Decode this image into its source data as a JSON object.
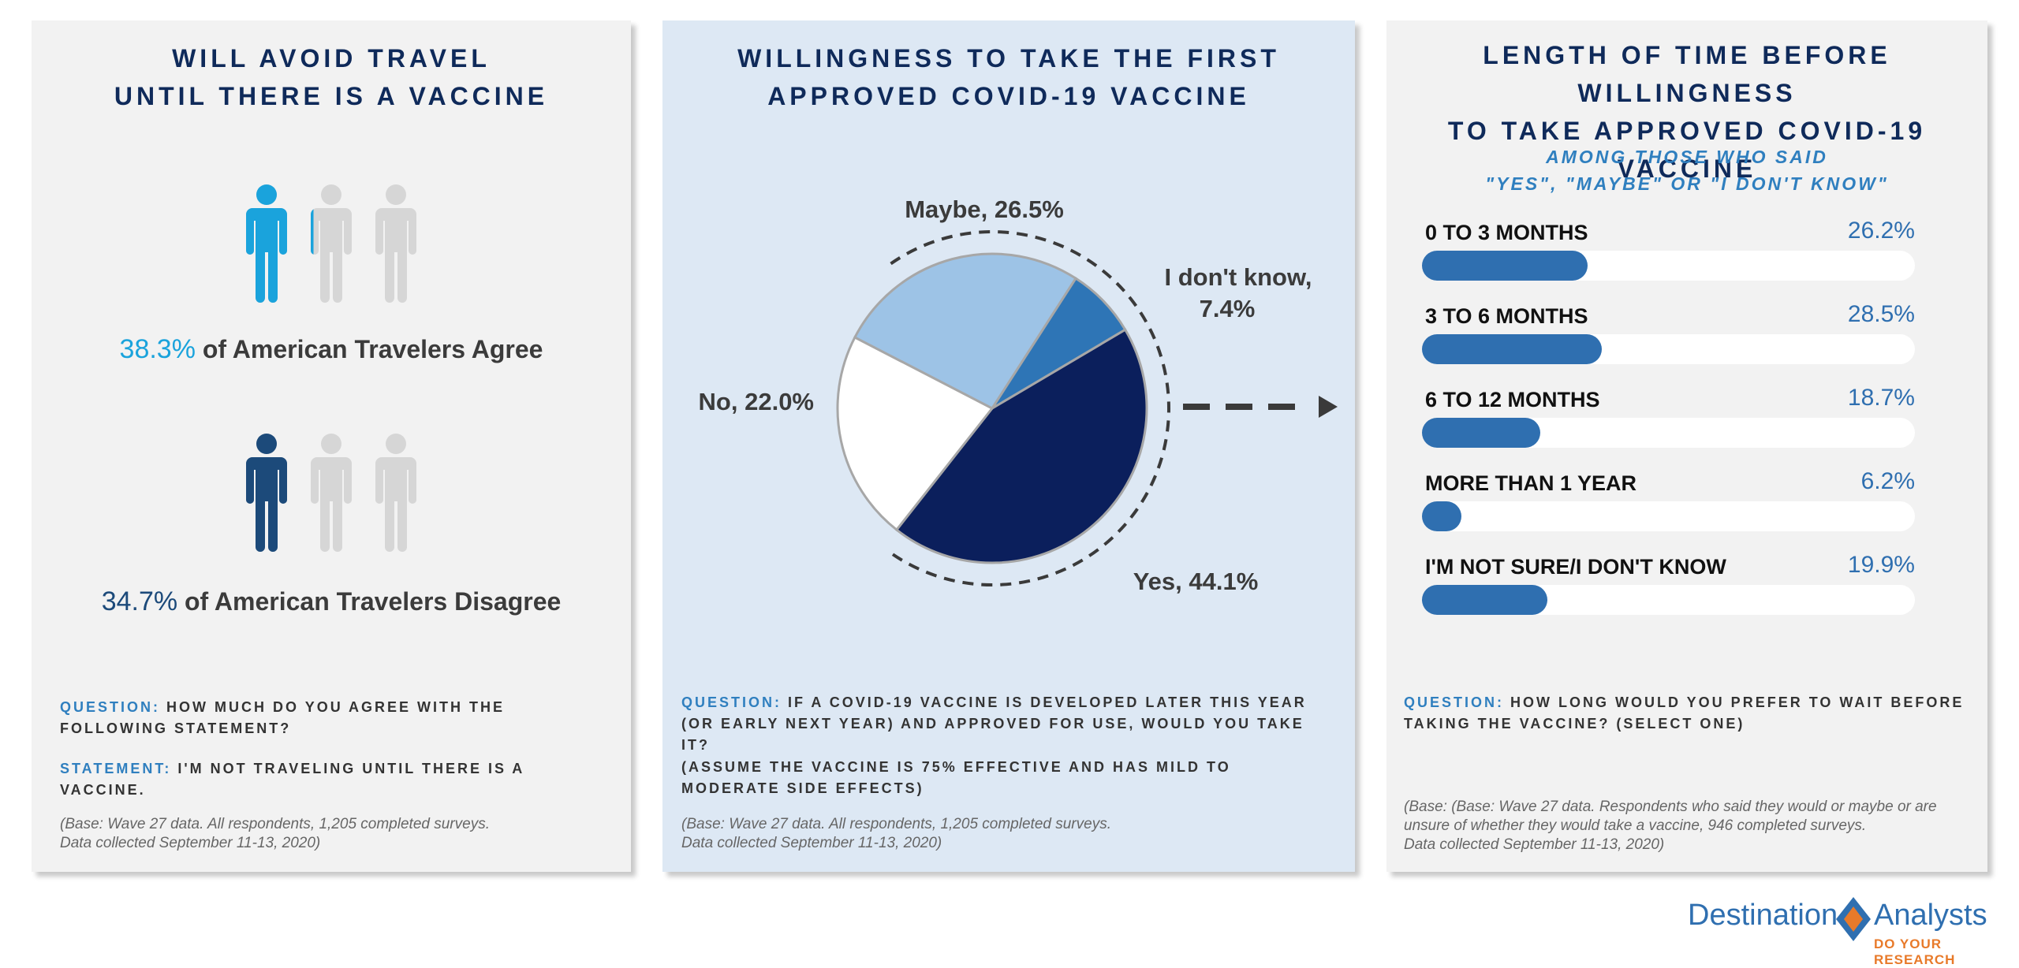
{
  "left_panel": {
    "title_line1": "WILL AVOID TRAVEL",
    "title_line2": "UNTIL THERE IS A VACCINE",
    "agree": {
      "pct": "38.3%",
      "text": "of American Travelers Agree",
      "color": "#1aa3dc",
      "fraction": 0.383
    },
    "disagree": {
      "pct": "34.7%",
      "text": "of American Travelers Disagree",
      "color": "#1c4a7a",
      "fraction": 0.347
    },
    "person_icon": "person-icon",
    "inactive_color": "#d6d6d6",
    "question_label": "QUESTION:",
    "question_text": "HOW MUCH DO YOU AGREE WITH THE FOLLOWING STATEMENT?",
    "statement_label": "STATEMENT:",
    "statement_text": "I'M NOT TRAVELING UNTIL THERE IS A VACCINE.",
    "base_line1": "(Base: Wave 27 data. All respondents, 1,205 completed surveys.",
    "base_line2": "Data collected September 11-13, 2020)"
  },
  "middle_panel": {
    "title_line1": "WILLINGNESS TO TAKE THE FIRST",
    "title_line2": "APPROVED COVID-19 VACCINE",
    "question_label": "QUESTION:",
    "question_text": "IF A COVID-19 VACCINE IS DEVELOPED LATER THIS YEAR (OR EARLY NEXT YEAR) AND APPROVED FOR USE, WOULD YOU TAKE IT?",
    "note_text": "(ASSUME THE VACCINE IS 75% EFFECTIVE AND HAS MILD TO MODERATE SIDE EFFECTS)",
    "base_line1": "(Base: Wave 27 data. All respondents, 1,205 completed surveys.",
    "base_line2": "Data collected September 11-13, 2020)"
  },
  "right_panel": {
    "title_line1": "LENGTH OF TIME BEFORE WILLINGNESS",
    "title_line2": "TO TAKE APPROVED COVID-19 VACCINE",
    "subtitle_line1": "AMONG THOSE WHO SAID",
    "subtitle_line2": "\"YES\", \"MAYBE\" OR \"I DON'T KNOW\"",
    "question_label": "QUESTION:",
    "question_text": "HOW LONG WOULD YOU PREFER TO WAIT BEFORE TAKING THE VACCINE?  (SELECT ONE)",
    "base_line1": "(Base: (Base: Wave 27 data. Respondents who said they would or maybe or are",
    "base_line2": "unsure of whether they would take a vaccine, 946 completed surveys.",
    "base_line3": "Data collected September 11-13, 2020)"
  },
  "chart_data": [
    {
      "type": "pie",
      "title": "WILLINGNESS TO TAKE THE FIRST APPROVED COVID-19 VACCINE",
      "slices": [
        {
          "label": "Yes",
          "display": "Yes, 44.1%",
          "value": 44.1,
          "color": "#0b1f5c"
        },
        {
          "label": "No",
          "display": "No, 22.0%",
          "value": 22.0,
          "color": "#ffffff"
        },
        {
          "label": "Maybe",
          "display": "Maybe, 26.5%",
          "value": 26.5,
          "color": "#9dc3e6"
        },
        {
          "label": "I don't know",
          "display_line1": "I don't know,",
          "display_line2": "7.4%",
          "value": 7.4,
          "color": "#2e75b6"
        }
      ]
    },
    {
      "type": "bar",
      "orientation": "horizontal",
      "title": "LENGTH OF TIME BEFORE WILLINGNESS TO TAKE APPROVED COVID-19 VACCINE",
      "max": 100,
      "bar_color": "#2f6fb0",
      "categories": [
        "0 TO 3 MONTHS",
        "3 TO 6 MONTHS",
        "6 TO 12 MONTHS",
        "MORE THAN 1 YEAR",
        "I'M NOT SURE/I DON'T KNOW"
      ],
      "values": [
        26.2,
        28.5,
        18.7,
        6.2,
        19.9
      ],
      "labels": [
        "26.2%",
        "28.5%",
        "18.7%",
        "6.2%",
        "19.9%"
      ]
    }
  ],
  "logo": {
    "word1": "Destination",
    "word2": "Analysts",
    "tagline": "DO YOUR RESEARCH",
    "color_blue": "#2f6fb0",
    "color_orange": "#e87a2a"
  }
}
